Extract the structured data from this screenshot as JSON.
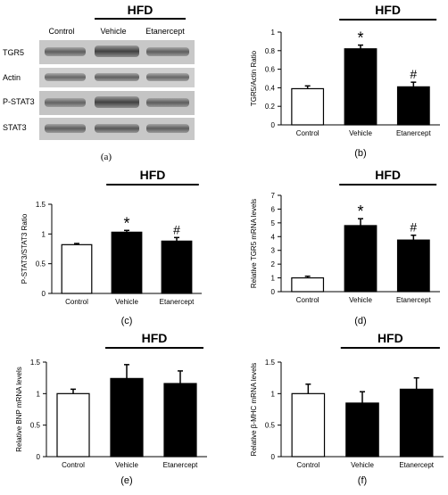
{
  "blot": {
    "group_label": "HFD",
    "lanes": [
      "Control",
      "Vehicle",
      "Etanercept"
    ],
    "rows": [
      "TGR5",
      "Actin",
      "P-STAT3",
      "STAT3"
    ],
    "caption": "(a)"
  },
  "chart_data": [
    {
      "id": "b",
      "type": "bar",
      "categories": [
        "Control",
        "Vehicle",
        "Etanercept"
      ],
      "values": [
        0.39,
        0.82,
        0.41
      ],
      "errors": [
        0.03,
        0.04,
        0.05
      ],
      "markers": [
        "",
        "*",
        "#"
      ],
      "ylabel": "TGR5/Actin Ratio",
      "ylim": [
        0,
        1
      ],
      "yticks": [
        "0",
        "0.2",
        "0.4",
        "0.6",
        "0.8",
        "1"
      ],
      "group_label": "HFD",
      "caption": "(b)"
    },
    {
      "id": "c",
      "type": "bar",
      "categories": [
        "Control",
        "Vehicle",
        "Etanercept"
      ],
      "values": [
        0.82,
        1.03,
        0.88
      ],
      "errors": [
        0.02,
        0.03,
        0.06
      ],
      "markers": [
        "",
        "*",
        "#"
      ],
      "ylabel": "P-STAT3/STAT3 Ratio",
      "ylim": [
        0,
        1.5
      ],
      "yticks": [
        "0",
        "0.5",
        "1",
        "1.5"
      ],
      "group_label": "HFD",
      "caption": "(c)"
    },
    {
      "id": "d",
      "type": "bar",
      "categories": [
        "Control",
        "Vehicle",
        "Etanercept"
      ],
      "values": [
        1.0,
        4.8,
        3.75
      ],
      "errors": [
        0.12,
        0.5,
        0.35
      ],
      "markers": [
        "",
        "*",
        "#"
      ],
      "ylabel": "Relative TGR5 mRNA levels",
      "ylim": [
        0,
        7
      ],
      "yticks": [
        "0",
        "1",
        "2",
        "3",
        "4",
        "5",
        "6",
        "7"
      ],
      "group_label": "HFD",
      "caption": "(d)"
    },
    {
      "id": "e",
      "type": "bar",
      "categories": [
        "Control",
        "Vehicle",
        "Etanercept"
      ],
      "values": [
        1.0,
        1.24,
        1.16
      ],
      "errors": [
        0.07,
        0.22,
        0.2
      ],
      "markers": [
        "",
        "",
        ""
      ],
      "ylabel": "Relative BNP mRNA levels",
      "ylim": [
        0,
        1.5
      ],
      "yticks": [
        "0",
        "0.5",
        "1",
        "1.5"
      ],
      "group_label": "HFD",
      "caption": "(e)"
    },
    {
      "id": "f",
      "type": "bar",
      "categories": [
        "Control",
        "Vehicle",
        "Etanercept"
      ],
      "values": [
        1.0,
        0.85,
        1.07
      ],
      "errors": [
        0.15,
        0.18,
        0.18
      ],
      "markers": [
        "",
        "",
        ""
      ],
      "ylabel": "Relative β-MHC mRNA levels",
      "ylim": [
        0,
        1.5
      ],
      "yticks": [
        "0",
        "0.5",
        "1",
        "1.5"
      ],
      "group_label": "HFD",
      "caption": "(f)"
    }
  ]
}
